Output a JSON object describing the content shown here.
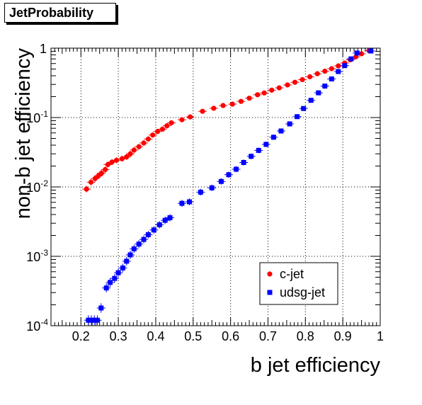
{
  "chart_data": {
    "type": "scatter",
    "title": "JetProbability",
    "xlabel": "b jet efficiency",
    "ylabel": "non-b jet efficiency",
    "xlim": [
      0.12,
      1.0
    ],
    "ylim": [
      0.0001,
      1
    ],
    "y_scale": "log",
    "grid": true,
    "legend_position": "bottom-right",
    "x_ticks": [
      "0.2",
      "0.3",
      "0.4",
      "0.5",
      "0.6",
      "0.7",
      "0.8",
      "0.9",
      "1"
    ],
    "x_tick_values": [
      0.2,
      0.3,
      0.4,
      0.5,
      0.6,
      0.7,
      0.8,
      0.9,
      1.0
    ],
    "y_ticks": [
      {
        "value": 0.0001,
        "base": "10",
        "exp": "-4"
      },
      {
        "value": 0.001,
        "base": "10",
        "exp": "-3"
      },
      {
        "value": 0.01,
        "base": "10",
        "exp": "-2"
      },
      {
        "value": 0.1,
        "base": "10",
        "exp": "-1"
      },
      {
        "value": 1,
        "base": "1",
        "exp": ""
      }
    ],
    "series": [
      {
        "name": "c-jet",
        "color": "#ff0000",
        "marker": "circle",
        "points": [
          [
            0.215,
            0.0093
          ],
          [
            0.227,
            0.0117
          ],
          [
            0.238,
            0.0132
          ],
          [
            0.247,
            0.0145
          ],
          [
            0.255,
            0.0158
          ],
          [
            0.265,
            0.0178
          ],
          [
            0.272,
            0.021
          ],
          [
            0.283,
            0.0228
          ],
          [
            0.295,
            0.0242
          ],
          [
            0.31,
            0.0255
          ],
          [
            0.322,
            0.027
          ],
          [
            0.332,
            0.03
          ],
          [
            0.342,
            0.034
          ],
          [
            0.355,
            0.038
          ],
          [
            0.368,
            0.043
          ],
          [
            0.38,
            0.049
          ],
          [
            0.392,
            0.056
          ],
          [
            0.405,
            0.063
          ],
          [
            0.418,
            0.068
          ],
          [
            0.43,
            0.076
          ],
          [
            0.442,
            0.084
          ],
          [
            0.47,
            0.093
          ],
          [
            0.492,
            0.102
          ],
          [
            0.525,
            0.123
          ],
          [
            0.555,
            0.136
          ],
          [
            0.58,
            0.149
          ],
          [
            0.605,
            0.156
          ],
          [
            0.628,
            0.171
          ],
          [
            0.65,
            0.19
          ],
          [
            0.672,
            0.213
          ],
          [
            0.69,
            0.226
          ],
          [
            0.71,
            0.248
          ],
          [
            0.73,
            0.268
          ],
          [
            0.752,
            0.295
          ],
          [
            0.772,
            0.322
          ],
          [
            0.792,
            0.352
          ],
          [
            0.812,
            0.387
          ],
          [
            0.832,
            0.428
          ],
          [
            0.852,
            0.465
          ],
          [
            0.87,
            0.506
          ],
          [
            0.888,
            0.555
          ],
          [
            0.905,
            0.61
          ],
          [
            0.92,
            0.68
          ],
          [
            0.935,
            0.75
          ],
          [
            0.95,
            0.83
          ],
          [
            0.97,
            0.92
          ]
        ]
      },
      {
        "name": "udsg-jet",
        "color": "#0000ff",
        "marker": "square",
        "points": [
          [
            0.22,
            0.00012
          ],
          [
            0.228,
            0.00012
          ],
          [
            0.236,
            0.00012
          ],
          [
            0.244,
            0.00012
          ],
          [
            0.254,
            0.00018
          ],
          [
            0.268,
            0.00035
          ],
          [
            0.278,
            0.00042
          ],
          [
            0.29,
            0.00048
          ],
          [
            0.3,
            0.00058
          ],
          [
            0.312,
            0.00068
          ],
          [
            0.322,
            0.00085
          ],
          [
            0.332,
            0.00105
          ],
          [
            0.342,
            0.00128
          ],
          [
            0.355,
            0.0015
          ],
          [
            0.368,
            0.00175
          ],
          [
            0.38,
            0.00205
          ],
          [
            0.395,
            0.0024
          ],
          [
            0.41,
            0.00285
          ],
          [
            0.425,
            0.0033
          ],
          [
            0.438,
            0.0036
          ],
          [
            0.47,
            0.0058
          ],
          [
            0.49,
            0.0061
          ],
          [
            0.52,
            0.0084
          ],
          [
            0.55,
            0.0097
          ],
          [
            0.575,
            0.012
          ],
          [
            0.595,
            0.015
          ],
          [
            0.615,
            0.018
          ],
          [
            0.635,
            0.0225
          ],
          [
            0.655,
            0.0276
          ],
          [
            0.675,
            0.0336
          ],
          [
            0.695,
            0.041
          ],
          [
            0.715,
            0.052
          ],
          [
            0.735,
            0.064
          ],
          [
            0.758,
            0.081
          ],
          [
            0.778,
            0.103
          ],
          [
            0.795,
            0.135
          ],
          [
            0.815,
            0.177
          ],
          [
            0.835,
            0.227
          ],
          [
            0.852,
            0.284
          ],
          [
            0.87,
            0.36
          ],
          [
            0.888,
            0.46
          ],
          [
            0.905,
            0.56
          ],
          [
            0.922,
            0.7
          ],
          [
            0.938,
            0.85
          ],
          [
            0.975,
            0.91
          ]
        ]
      }
    ]
  }
}
